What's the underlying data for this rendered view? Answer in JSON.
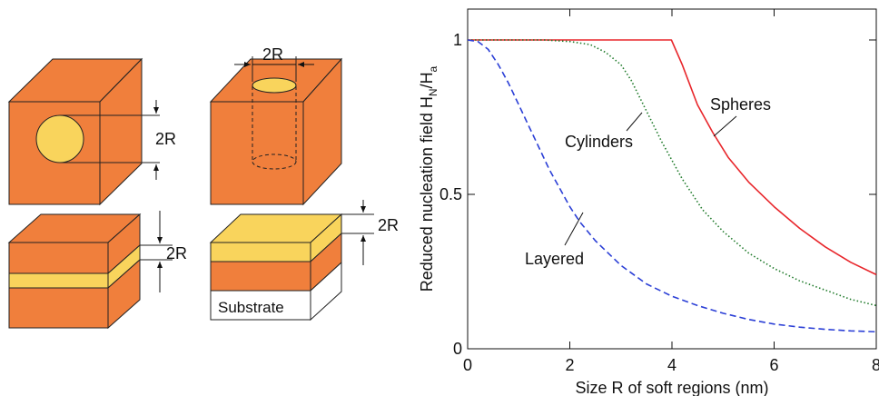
{
  "schematics": {
    "sphere": {
      "dim_label": "2R"
    },
    "cylinder": {
      "dim_label": "2R"
    },
    "layered": {
      "dim_label": "2R"
    },
    "substrate": {
      "dim_label": "2R",
      "substrate_label": "Substrate"
    }
  },
  "colors": {
    "hard": "#f07f3c",
    "soft": "#f9d45c",
    "spheres": "#e8262b",
    "cylinders": "#1f7a2a",
    "layered": "#2b3fd6"
  },
  "chart_data": {
    "type": "line",
    "xlabel": "Size R of soft regions (nm)",
    "ylabel": "Reduced nucleation field H",
    "ylabel_sub1": "N",
    "ylabel_mid": "/H",
    "ylabel_sub2": "a",
    "xlim": [
      0,
      8
    ],
    "ylim": [
      0,
      1.1
    ],
    "xticks": [
      "0",
      "2",
      "4",
      "6",
      "8"
    ],
    "yticks": [
      "0",
      "0.5",
      "1"
    ],
    "grid": false,
    "series": [
      {
        "name": "Spheres",
        "style": "solid",
        "x": [
          0,
          1,
          2,
          3,
          3.99,
          4.2,
          4.5,
          4.8,
          5.1,
          5.5,
          6.0,
          6.5,
          7.0,
          7.5,
          8.0
        ],
        "y": [
          1,
          1,
          1,
          1,
          1,
          0.92,
          0.79,
          0.7,
          0.62,
          0.54,
          0.46,
          0.39,
          0.33,
          0.28,
          0.24
        ]
      },
      {
        "name": "Cylinders",
        "style": "dotted",
        "x": [
          0,
          0.5,
          1.0,
          1.5,
          2.0,
          2.4,
          2.7,
          3.0,
          3.2,
          3.5,
          3.8,
          4.2,
          4.6,
          5.0,
          5.5,
          6.0,
          6.5,
          7.0,
          7.5,
          8.0
        ],
        "y": [
          1,
          1,
          1,
          1,
          0.995,
          0.985,
          0.96,
          0.92,
          0.87,
          0.77,
          0.67,
          0.55,
          0.45,
          0.38,
          0.31,
          0.26,
          0.22,
          0.19,
          0.16,
          0.14
        ]
      },
      {
        "name": "Layered",
        "style": "dashed",
        "x": [
          0,
          0.2,
          0.4,
          0.6,
          0.8,
          1.0,
          1.2,
          1.4,
          1.6,
          1.8,
          2.0,
          2.2,
          2.5,
          3.0,
          3.5,
          4.0,
          4.5,
          5.0,
          5.5,
          6.0,
          6.5,
          7.0,
          7.5,
          8.0
        ],
        "y": [
          1,
          0.995,
          0.97,
          0.92,
          0.86,
          0.79,
          0.72,
          0.65,
          0.58,
          0.52,
          0.46,
          0.41,
          0.35,
          0.27,
          0.21,
          0.17,
          0.14,
          0.115,
          0.095,
          0.08,
          0.07,
          0.063,
          0.058,
          0.055
        ]
      }
    ]
  }
}
